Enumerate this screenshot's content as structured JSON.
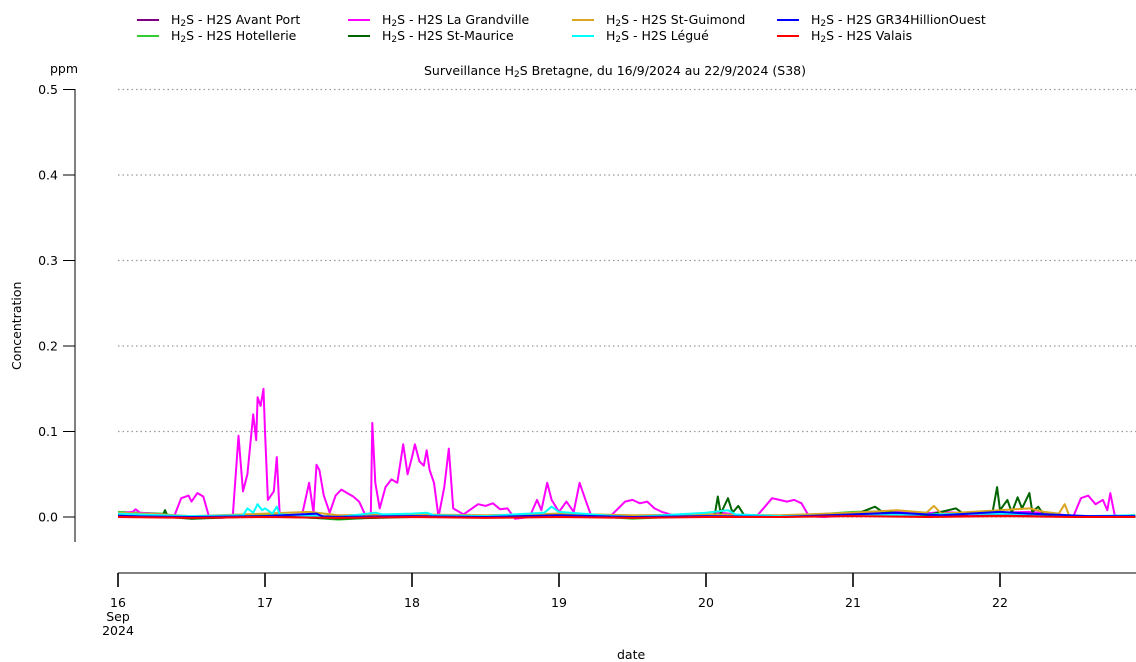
{
  "chart_data": {
    "type": "line",
    "title_parts": {
      "pre": "Surveillance H",
      "sub": "2",
      "post": "S Bretagne, du 16/9/2024 au 22/9/2024 (S38)"
    },
    "ylabel": "Concentration",
    "yunit": "ppm",
    "xlabel": "date",
    "ylim": [
      -0.03,
      0.5
    ],
    "yticks": [
      0.0,
      0.1,
      0.2,
      0.3,
      0.4,
      0.5
    ],
    "ytick_labels": [
      "0.0",
      "0.1",
      "0.2",
      "0.3",
      "0.4",
      "0.5"
    ],
    "xlim_days": [
      16.0,
      22.92
    ],
    "xticks": [
      16,
      17,
      18,
      19,
      20,
      21,
      22
    ],
    "xtick_labels": [
      "16",
      "17",
      "18",
      "19",
      "20",
      "21",
      "22"
    ],
    "xtick_first_extra": [
      "Sep",
      "2024"
    ],
    "grid": "horizontal dotted",
    "legend_placement": "top",
    "series": [
      {
        "pre": "H",
        "sub": "2",
        "name": "S - H2S Avant Port",
        "color": "#800080",
        "points": [
          [
            16.0,
            0.002
          ],
          [
            16.5,
            0.0
          ],
          [
            17.0,
            0.002
          ],
          [
            17.5,
            0.001
          ],
          [
            18.0,
            0.002
          ],
          [
            18.5,
            0.001
          ],
          [
            19.0,
            0.003
          ],
          [
            19.5,
            0.001
          ],
          [
            20.0,
            0.002
          ],
          [
            20.5,
            0.001
          ],
          [
            21.0,
            0.002
          ],
          [
            21.5,
            0.001
          ],
          [
            22.0,
            0.002
          ],
          [
            22.5,
            0.001
          ],
          [
            22.92,
            0.001
          ]
        ]
      },
      {
        "pre": "H",
        "sub": "2",
        "name": "S - H2S Hotellerie",
        "color": "#33cc33",
        "points": [
          [
            16.0,
            0.006
          ],
          [
            16.3,
            0.004
          ],
          [
            16.5,
            -0.002
          ],
          [
            17.0,
            0.003
          ],
          [
            17.5,
            -0.003
          ],
          [
            18.0,
            0.002
          ],
          [
            18.5,
            0.0
          ],
          [
            19.0,
            0.004
          ],
          [
            19.5,
            -0.002
          ],
          [
            20.0,
            0.002
          ],
          [
            20.5,
            0.0
          ],
          [
            21.0,
            0.006
          ],
          [
            21.3,
            0.007
          ],
          [
            21.6,
            0.004
          ],
          [
            22.0,
            0.005
          ],
          [
            22.3,
            0.004
          ],
          [
            22.6,
            0.0
          ],
          [
            22.92,
            0.002
          ]
        ]
      },
      {
        "pre": "H",
        "sub": "2",
        "name": "S - H2S La Grandville",
        "color": "#ff00ff",
        "points": [
          [
            16.0,
            0.004
          ],
          [
            16.1,
            0.006
          ],
          [
            16.12,
            0.009
          ],
          [
            16.15,
            0.005
          ],
          [
            16.3,
            0.003
          ],
          [
            16.38,
            0.0
          ],
          [
            16.43,
            0.022
          ],
          [
            16.48,
            0.025
          ],
          [
            16.5,
            0.018
          ],
          [
            16.54,
            0.028
          ],
          [
            16.58,
            0.024
          ],
          [
            16.62,
            0.0
          ],
          [
            16.7,
            -0.001
          ],
          [
            16.78,
            0.0
          ],
          [
            16.82,
            0.095
          ],
          [
            16.85,
            0.03
          ],
          [
            16.88,
            0.05
          ],
          [
            16.9,
            0.085
          ],
          [
            16.92,
            0.12
          ],
          [
            16.94,
            0.09
          ],
          [
            16.95,
            0.14
          ],
          [
            16.97,
            0.13
          ],
          [
            16.99,
            0.15
          ],
          [
            17.0,
            0.1
          ],
          [
            17.02,
            0.02
          ],
          [
            17.06,
            0.03
          ],
          [
            17.08,
            0.07
          ],
          [
            17.1,
            0.003
          ],
          [
            17.25,
            0.001
          ],
          [
            17.3,
            0.04
          ],
          [
            17.33,
            0.005
          ],
          [
            17.35,
            0.061
          ],
          [
            17.37,
            0.055
          ],
          [
            17.4,
            0.025
          ],
          [
            17.44,
            0.005
          ],
          [
            17.48,
            0.025
          ],
          [
            17.52,
            0.032
          ],
          [
            17.56,
            0.028
          ],
          [
            17.6,
            0.024
          ],
          [
            17.64,
            0.018
          ],
          [
            17.68,
            0.003
          ],
          [
            17.72,
            0.002
          ],
          [
            17.73,
            0.11
          ],
          [
            17.75,
            0.04
          ],
          [
            17.78,
            0.01
          ],
          [
            17.82,
            0.035
          ],
          [
            17.86,
            0.044
          ],
          [
            17.9,
            0.04
          ],
          [
            17.94,
            0.085
          ],
          [
            17.97,
            0.05
          ],
          [
            18.0,
            0.07
          ],
          [
            18.02,
            0.085
          ],
          [
            18.05,
            0.065
          ],
          [
            18.08,
            0.06
          ],
          [
            18.1,
            0.078
          ],
          [
            18.12,
            0.055
          ],
          [
            18.15,
            0.04
          ],
          [
            18.18,
            0.0
          ],
          [
            18.22,
            0.035
          ],
          [
            18.25,
            0.08
          ],
          [
            18.28,
            0.01
          ],
          [
            18.35,
            0.003
          ],
          [
            18.45,
            0.015
          ],
          [
            18.5,
            0.013
          ],
          [
            18.55,
            0.016
          ],
          [
            18.6,
            0.009
          ],
          [
            18.65,
            0.01
          ],
          [
            18.7,
            -0.002
          ],
          [
            18.8,
            0.0
          ],
          [
            18.85,
            0.02
          ],
          [
            18.88,
            0.008
          ],
          [
            18.92,
            0.04
          ],
          [
            18.95,
            0.02
          ],
          [
            19.0,
            0.006
          ],
          [
            19.05,
            0.018
          ],
          [
            19.1,
            0.006
          ],
          [
            19.14,
            0.04
          ],
          [
            19.18,
            0.02
          ],
          [
            19.22,
            0.001
          ],
          [
            19.35,
            0.001
          ],
          [
            19.45,
            0.018
          ],
          [
            19.5,
            0.02
          ],
          [
            19.55,
            0.016
          ],
          [
            19.6,
            0.018
          ],
          [
            19.65,
            0.01
          ],
          [
            19.7,
            0.006
          ],
          [
            19.8,
            0.001
          ],
          [
            19.85,
            0.003
          ],
          [
            19.9,
            0.0
          ],
          [
            20.0,
            0.002
          ],
          [
            20.1,
            0.005
          ],
          [
            20.2,
            0.003
          ],
          [
            20.35,
            0.002
          ],
          [
            20.45,
            0.022
          ],
          [
            20.5,
            0.02
          ],
          [
            20.55,
            0.018
          ],
          [
            20.6,
            0.02
          ],
          [
            20.65,
            0.016
          ],
          [
            20.7,
            0.001
          ],
          [
            20.8,
            0.0
          ],
          [
            21.0,
            0.002
          ],
          [
            21.1,
            0.005
          ],
          [
            21.2,
            0.007
          ],
          [
            21.3,
            0.006
          ],
          [
            21.5,
            0.004
          ],
          [
            21.6,
            0.006
          ],
          [
            21.7,
            0.005
          ],
          [
            21.8,
            0.003
          ],
          [
            22.0,
            0.005
          ],
          [
            22.2,
            0.006
          ],
          [
            22.4,
            0.003
          ],
          [
            22.5,
            0.001
          ],
          [
            22.55,
            0.022
          ],
          [
            22.6,
            0.025
          ],
          [
            22.65,
            0.015
          ],
          [
            22.7,
            0.02
          ],
          [
            22.73,
            0.008
          ],
          [
            22.75,
            0.028
          ],
          [
            22.78,
            0.002
          ],
          [
            22.85,
            0.001
          ],
          [
            22.92,
            0.001
          ]
        ]
      },
      {
        "pre": "H",
        "sub": "2",
        "name": "S - H2S St-Maurice",
        "color": "#006400",
        "points": [
          [
            16.0,
            0.001
          ],
          [
            16.3,
            0.0
          ],
          [
            16.32,
            0.008
          ],
          [
            16.34,
            0.0
          ],
          [
            16.5,
            -0.002
          ],
          [
            17.0,
            0.001
          ],
          [
            17.5,
            -0.002
          ],
          [
            18.0,
            0.0
          ],
          [
            18.5,
            0.0
          ],
          [
            19.0,
            0.002
          ],
          [
            19.5,
            0.0
          ],
          [
            20.0,
            0.001
          ],
          [
            20.06,
            0.003
          ],
          [
            20.08,
            0.024
          ],
          [
            20.1,
            0.004
          ],
          [
            20.15,
            0.022
          ],
          [
            20.18,
            0.005
          ],
          [
            20.22,
            0.013
          ],
          [
            20.26,
            0.002
          ],
          [
            20.5,
            0.0
          ],
          [
            21.0,
            0.002
          ],
          [
            21.15,
            0.012
          ],
          [
            21.2,
            0.006
          ],
          [
            21.5,
            0.002
          ],
          [
            21.7,
            0.01
          ],
          [
            21.75,
            0.004
          ],
          [
            21.95,
            0.006
          ],
          [
            21.98,
            0.035
          ],
          [
            22.0,
            0.008
          ],
          [
            22.05,
            0.02
          ],
          [
            22.08,
            0.005
          ],
          [
            22.12,
            0.023
          ],
          [
            22.15,
            0.01
          ],
          [
            22.2,
            0.028
          ],
          [
            22.22,
            0.006
          ],
          [
            22.26,
            0.012
          ],
          [
            22.3,
            0.002
          ],
          [
            22.6,
            0.0
          ],
          [
            22.92,
            0.002
          ]
        ]
      },
      {
        "pre": "H",
        "sub": "2",
        "name": "S - H2S St-Guimond",
        "color": "#daa520",
        "points": [
          [
            16.0,
            0.005
          ],
          [
            16.3,
            0.003
          ],
          [
            16.5,
            0.001
          ],
          [
            17.0,
            0.004
          ],
          [
            17.3,
            0.006
          ],
          [
            17.5,
            0.002
          ],
          [
            18.0,
            0.003
          ],
          [
            18.5,
            0.002
          ],
          [
            19.0,
            0.004
          ],
          [
            19.5,
            0.002
          ],
          [
            20.0,
            0.003
          ],
          [
            20.5,
            0.002
          ],
          [
            21.0,
            0.005
          ],
          [
            21.3,
            0.008
          ],
          [
            21.5,
            0.005
          ],
          [
            21.55,
            0.013
          ],
          [
            21.6,
            0.004
          ],
          [
            22.0,
            0.008
          ],
          [
            22.2,
            0.01
          ],
          [
            22.3,
            0.006
          ],
          [
            22.4,
            0.004
          ],
          [
            22.44,
            0.015
          ],
          [
            22.47,
            0.002
          ],
          [
            22.6,
            0.0
          ],
          [
            22.92,
            0.002
          ]
        ]
      },
      {
        "pre": "H",
        "sub": "2",
        "name": "S - H2S Légué",
        "color": "#00ffff",
        "points": [
          [
            16.0,
            0.004
          ],
          [
            16.3,
            0.002
          ],
          [
            16.5,
            0.001
          ],
          [
            16.85,
            0.002
          ],
          [
            16.88,
            0.01
          ],
          [
            16.92,
            0.005
          ],
          [
            16.95,
            0.015
          ],
          [
            16.98,
            0.008
          ],
          [
            17.0,
            0.01
          ],
          [
            17.05,
            0.004
          ],
          [
            17.08,
            0.012
          ],
          [
            17.1,
            0.003
          ],
          [
            17.5,
            0.0
          ],
          [
            17.75,
            0.005
          ],
          [
            17.8,
            0.003
          ],
          [
            18.0,
            0.004
          ],
          [
            18.1,
            0.005
          ],
          [
            18.15,
            0.002
          ],
          [
            18.5,
            0.001
          ],
          [
            18.9,
            0.005
          ],
          [
            18.95,
            0.012
          ],
          [
            19.0,
            0.006
          ],
          [
            19.3,
            0.002
          ],
          [
            19.5,
            0.0
          ],
          [
            20.0,
            0.005
          ],
          [
            20.15,
            0.008
          ],
          [
            20.2,
            0.003
          ],
          [
            20.5,
            0.001
          ],
          [
            21.0,
            0.002
          ],
          [
            21.5,
            0.003
          ],
          [
            22.0,
            0.004
          ],
          [
            22.3,
            0.003
          ],
          [
            22.6,
            0.001
          ],
          [
            22.92,
            0.002
          ]
        ]
      },
      {
        "pre": "H",
        "sub": "2",
        "name": "S - H2S GR34HillionOuest",
        "color": "#0000ff",
        "points": [
          [
            16.0,
            0.001
          ],
          [
            16.5,
            0.0
          ],
          [
            17.0,
            0.001
          ],
          [
            17.35,
            0.004
          ],
          [
            17.4,
            0.0
          ],
          [
            18.0,
            0.001
          ],
          [
            18.5,
            0.0
          ],
          [
            19.0,
            0.002
          ],
          [
            19.5,
            0.0
          ],
          [
            20.0,
            0.001
          ],
          [
            20.5,
            0.0
          ],
          [
            21.0,
            0.003
          ],
          [
            21.3,
            0.005
          ],
          [
            21.6,
            0.002
          ],
          [
            22.0,
            0.006
          ],
          [
            22.2,
            0.004
          ],
          [
            22.6,
            0.001
          ],
          [
            22.92,
            0.001
          ]
        ]
      },
      {
        "pre": "H",
        "sub": "2",
        "name": "S - H2S Valais",
        "color": "#ff0000",
        "points": [
          [
            16.0,
            0.0
          ],
          [
            16.5,
            -0.001
          ],
          [
            17.0,
            0.0
          ],
          [
            17.5,
            -0.001
          ],
          [
            18.0,
            0.0
          ],
          [
            18.5,
            -0.001
          ],
          [
            19.0,
            0.0
          ],
          [
            19.5,
            -0.001
          ],
          [
            20.0,
            0.0
          ],
          [
            20.5,
            0.0
          ],
          [
            21.0,
            0.001
          ],
          [
            21.5,
            0.0
          ],
          [
            22.0,
            0.001
          ],
          [
            22.5,
            0.0
          ],
          [
            22.92,
            0.0
          ]
        ]
      }
    ]
  }
}
